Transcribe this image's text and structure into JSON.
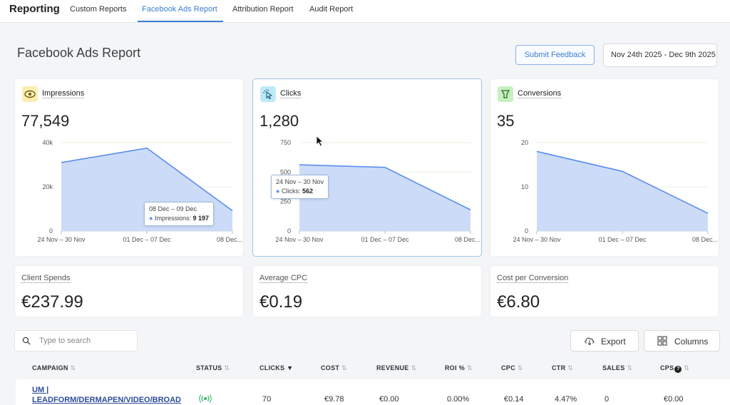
{
  "nav": {
    "brand": "Reporting",
    "tabs": [
      "Custom Reports",
      "Facebook Ads Report",
      "Attribution Report",
      "Audit Report"
    ],
    "active_tab": "Facebook Ads Report"
  },
  "header": {
    "title": "Facebook Ads Report",
    "feedback_button": "Submit Feedback",
    "date_range": "Nov 24th 2025 - Dec 9th 2025"
  },
  "metrics": [
    {
      "label": "Impressions",
      "value": "77,549",
      "icon": "eye-icon",
      "tooltip": {
        "range": "08 Dec – 09 Dec",
        "series": "Impressions",
        "value": "9 197"
      }
    },
    {
      "label": "Clicks",
      "value": "1,280",
      "icon": "cursor-click-icon",
      "tooltip": {
        "range": "24 Nov – 30 Nov",
        "series": "Clicks",
        "value": "562"
      }
    },
    {
      "label": "Conversions",
      "value": "35",
      "icon": "funnel-icon"
    }
  ],
  "chart_data": [
    {
      "type": "area",
      "categories": [
        "24 Nov – 30 Nov",
        "01 Dec – 07 Dec",
        "08 Dec..."
      ],
      "series": [
        {
          "name": "Impressions",
          "values": [
            31000,
            37500,
            9197
          ]
        }
      ],
      "ylim": [
        0,
        40000
      ],
      "yticks": [
        "0",
        "20k",
        "40k"
      ]
    },
    {
      "type": "area",
      "categories": [
        "24 Nov – 30 Nov",
        "01 Dec – 07 Dec",
        "08 Dec..."
      ],
      "series": [
        {
          "name": "Clicks",
          "values": [
            562,
            540,
            180
          ]
        }
      ],
      "ylim": [
        0,
        750
      ],
      "yticks": [
        "0",
        "250",
        "500",
        "750"
      ]
    },
    {
      "type": "area",
      "categories": [
        "24 Nov – 30 Nov",
        "01 Dec – 07 Dec",
        "08 Dec..."
      ],
      "series": [
        {
          "name": "Conversions",
          "values": [
            18,
            13.5,
            4
          ]
        }
      ],
      "ylim": [
        0,
        20
      ],
      "yticks": [
        "0",
        "10",
        "20"
      ]
    }
  ],
  "stats": [
    {
      "label": "Client Spends",
      "value": "€237.99"
    },
    {
      "label": "Average CPC",
      "value": "€0.19"
    },
    {
      "label": "Cost per Conversion",
      "value": "€6.80"
    }
  ],
  "toolbar": {
    "search_placeholder": "Type to search",
    "export_label": "Export",
    "columns_label": "Columns"
  },
  "table": {
    "columns": [
      "CAMPAIGN",
      "STATUS",
      "CLICKS",
      "COST",
      "REVENUE",
      "ROI %",
      "CPC",
      "CTR",
      "SALES",
      "CPS"
    ],
    "rows": [
      {
        "campaign_line1": "UM |",
        "campaign_line2": "LEADFORM/DERMAPEN/VIDEO/BROAD",
        "clicks": "70",
        "cost": "€9.78",
        "revenue": "€0.00",
        "roi": "0.00%",
        "cpc": "€0.14",
        "ctr": "4.47%",
        "sales": "0",
        "cps": "€0.00"
      }
    ]
  },
  "colors": {
    "accent": "#3b7fd1",
    "area_fill": "#c6d8f7",
    "area_line": "#5b8def"
  }
}
